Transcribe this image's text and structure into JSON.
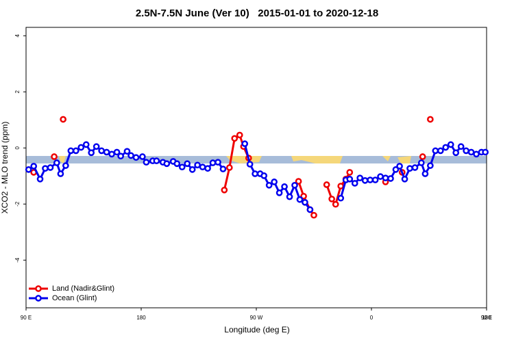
{
  "chart_data": {
    "type": "line",
    "title": "2.5N-7.5N June (Ver 10)   2015-01-01 to 2020-12-18",
    "x_label": "Longitude (deg E)",
    "y_label": "XCO2 - MLO trend (ppm)",
    "xlim": [
      90,
      450
    ],
    "ylim": [
      -5.7,
      4.3
    ],
    "xticks": [
      {
        "value": 90,
        "label": "90 E"
      },
      180,
      {
        "value": 270,
        "label": "90 W"
      },
      {
        "value": 360,
        "label": "0"
      },
      {
        "value": 450,
        "label": "90 E"
      },
      {
        "value": 540,
        "label": "180"
      }
    ],
    "yticks": [
      4,
      2,
      0,
      -2,
      -4
    ],
    "legend": "bottom-left",
    "series": [
      {
        "name": "Land (Nadir&Glint)",
        "color": "#ee0000",
        "x": [
          96,
          104,
          112,
          116,
          119,
          180,
          245,
          249,
          253,
          257,
          260,
          264,
          280,
          303,
          307,
          312,
          315,
          320,
          325,
          329,
          332,
          336,
          340,
          343,
          360,
          371,
          378,
          384,
          392,
          400,
          403,
          406
        ],
        "values": [
          -0.87,
          null,
          -0.31,
          null,
          1.02,
          null,
          -1.5,
          -0.7,
          0.34,
          0.46,
          0.05,
          -0.36,
          null,
          -1.19,
          -1.72,
          -2.2,
          -2.4,
          null,
          -1.31,
          -1.82,
          -2.01,
          -1.36,
          -1.11,
          -0.87,
          null,
          -1.21,
          null,
          -0.87,
          null,
          -0.31,
          null,
          1.02
        ]
      },
      {
        "name": "Ocean (Glint)",
        "color": "#0000ee",
        "x": [
          92,
          96,
          101,
          105,
          109,
          114,
          117,
          121,
          125,
          129,
          133,
          137,
          141,
          145,
          149,
          153,
          157,
          161,
          164,
          169,
          172,
          176,
          181,
          184,
          189,
          192,
          197,
          200,
          205,
          208,
          212,
          216,
          220,
          224,
          228,
          232,
          236,
          240,
          244,
          252,
          261,
          265,
          269,
          273,
          276,
          280,
          284,
          288,
          292,
          296,
          300,
          304,
          308,
          312,
          324,
          336,
          340,
          343,
          347,
          351,
          355,
          359,
          363,
          367,
          371,
          375,
          379,
          382,
          386,
          390,
          394,
          399,
          402,
          406,
          410,
          414,
          418,
          422,
          426,
          430,
          434,
          438,
          442,
          446,
          449
        ],
        "values": [
          -0.77,
          -0.65,
          -1.11,
          -0.73,
          -0.7,
          -0.53,
          -0.92,
          -0.63,
          -0.1,
          -0.1,
          0.02,
          0.12,
          -0.17,
          0.05,
          -0.1,
          -0.15,
          -0.22,
          -0.15,
          -0.29,
          -0.12,
          -0.27,
          -0.34,
          -0.31,
          -0.51,
          -0.46,
          -0.46,
          -0.51,
          -0.56,
          -0.48,
          -0.56,
          -0.68,
          -0.56,
          -0.77,
          -0.61,
          -0.68,
          -0.73,
          -0.53,
          -0.51,
          -0.75,
          null,
          0.15,
          -0.58,
          -0.92,
          -0.92,
          -0.99,
          -1.33,
          -1.21,
          -1.6,
          -1.38,
          -1.74,
          -1.33,
          -1.84,
          -1.94,
          -2.2,
          null,
          -1.79,
          -1.14,
          -1.11,
          -1.26,
          -1.07,
          -1.16,
          -1.14,
          -1.14,
          -1.02,
          -1.07,
          -1.09,
          -0.77,
          -0.65,
          -1.11,
          -0.73,
          -0.7,
          -0.53,
          -0.92,
          -0.63,
          -0.1,
          -0.1,
          0.02,
          0.12,
          -0.17,
          0.05,
          -0.1,
          -0.15,
          -0.22,
          -0.15,
          -0.15
        ]
      }
    ]
  }
}
